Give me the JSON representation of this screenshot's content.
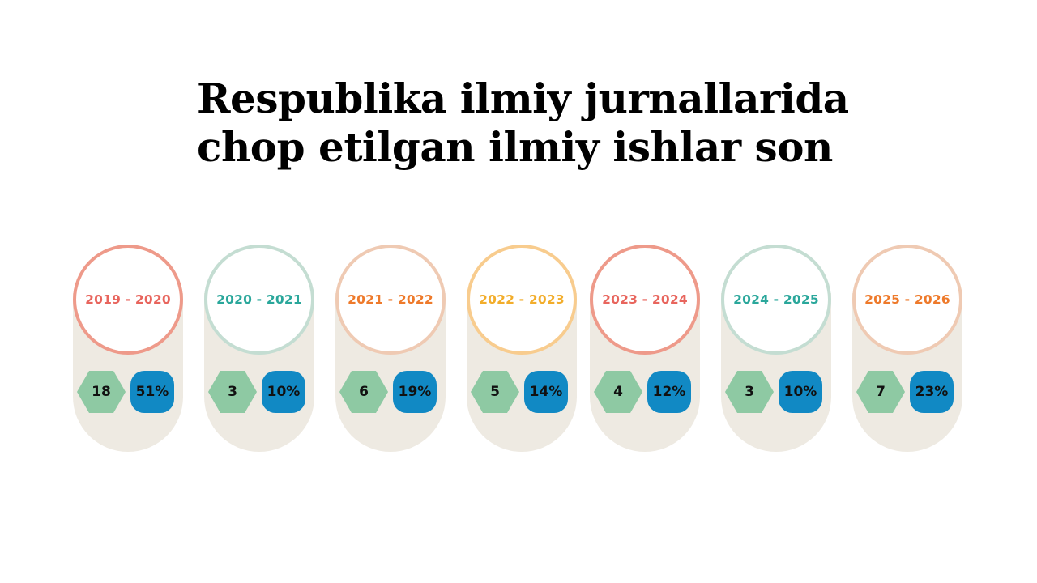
{
  "title": "Respublika ilmiy jurnallarida\nchop etilgan ilmiy ishlar son",
  "colors": {
    "pill_bg": "#eeeae2",
    "hex_green": "#8ec9a3",
    "pct_blue": "#1189c4"
  },
  "periods": [
    {
      "year": "2019 - 2020",
      "count": "18",
      "percent": "51%",
      "ring": "#ee9a8a",
      "text": "#e8655d"
    },
    {
      "year": "2020 - 2021",
      "count": "3",
      "percent": "10%",
      "ring": "#c4ddd2",
      "text": "#2aa79b"
    },
    {
      "year": "2021 - 2022",
      "count": "6",
      "percent": "19%",
      "ring": "#efcab3",
      "text": "#ee7a2b"
    },
    {
      "year": "2022 - 2023",
      "count": "5",
      "percent": "14%",
      "ring": "#f8cc8e",
      "text": "#f2ad2b"
    },
    {
      "year": "2023 - 2024",
      "count": "4",
      "percent": "12%",
      "ring": "#ee9a8a",
      "text": "#e8655d"
    },
    {
      "year": "2024 - 2025",
      "count": "3",
      "percent": "10%",
      "ring": "#c4ddd2",
      "text": "#2aa79b"
    },
    {
      "year": "2025 - 2026",
      "count": "7",
      "percent": "23%",
      "ring": "#efcab3",
      "text": "#ee7a2b"
    }
  ]
}
